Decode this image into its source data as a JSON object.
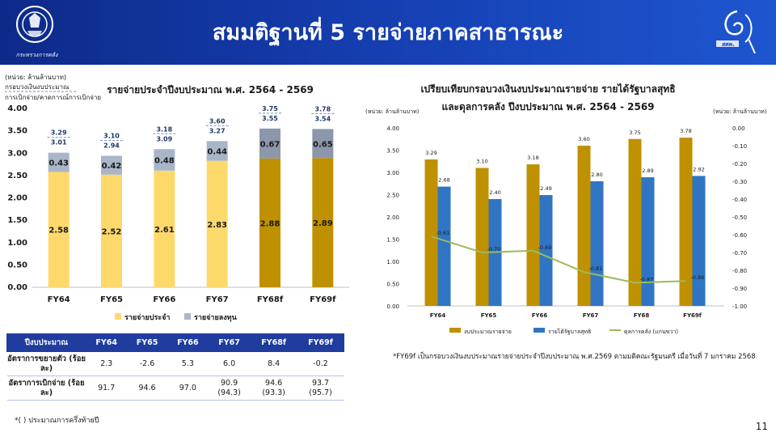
{
  "header": {
    "title": "สมมติฐานที่ 5  รายจ่ายภาคสาธารณะ",
    "org_left": "กระทรวงการคลัง",
    "org_right": "สศค."
  },
  "left_chart_unit": "(หน่วย: ล้านล้านบาท)",
  "left_chart_legend_note_1": "กรอบวงเงินงบประมาณ",
  "left_chart_legend_note_2": "การเบิกจ่าย/คาดการณ์การเบิกจ่าย",
  "right_chart_unit_left": "(หน่วย: ล้านล้านบาท)",
  "right_chart_unit_right": "(หน่วย: ล้านล้านบาท)",
  "chart_data": [
    {
      "type": "bar",
      "title": "รายจ่ายประจำปีงบประมาณ พ.ศ. 2564 - 2569",
      "categories": [
        "FY64",
        "FY65",
        "FY66",
        "FY67",
        "FY68f",
        "FY69f"
      ],
      "series": [
        {
          "name": "รายจ่ายประจำ",
          "values": [
            2.58,
            2.52,
            2.61,
            2.83,
            2.88,
            2.89
          ]
        },
        {
          "name": "รายจ่ายลงทุน",
          "values": [
            0.43,
            0.42,
            0.48,
            0.44,
            0.67,
            0.65
          ]
        }
      ],
      "budget_frame": [
        3.29,
        3.1,
        3.18,
        3.6,
        3.75,
        3.78
      ],
      "disbursement": [
        3.01,
        2.94,
        3.09,
        3.27,
        3.55,
        3.54
      ],
      "colors": {
        "recurrent": "#fdd96c",
        "recurrent_forecast": "#bf9000",
        "investment": "#a9b5c8",
        "investment_forecast": "#8c97ab"
      },
      "ylim": [
        0,
        4
      ],
      "yticks": [
        "0.00",
        "0.50",
        "1.00",
        "1.50",
        "2.00",
        "2.50",
        "3.00",
        "3.50",
        "4.00"
      ]
    },
    {
      "type": "bar",
      "title": "เปรียบเทียบกรอบวงเงินงบประมาณรายจ่าย รายได้รัฐบาลสุทธิ",
      "subtitle": "และดุลการคลัง ปีงบประมาณ พ.ศ. 2564 - 2569",
      "categories": [
        "FY64",
        "FY65",
        "FY66",
        "FY67",
        "FY68",
        "FY69f"
      ],
      "series": [
        {
          "name": "งบประมาณรายจ่าย",
          "values": [
            3.29,
            3.1,
            3.18,
            3.6,
            3.75,
            3.78
          ],
          "color": "#bf9000"
        },
        {
          "name": "รายได้รัฐบาลสุทธิ",
          "values": [
            2.68,
            2.4,
            2.49,
            2.8,
            2.89,
            2.92
          ],
          "color": "#2f75c4"
        },
        {
          "name": "ดุลการคลัง (แกนขวา)",
          "values": [
            -0.61,
            -0.7,
            -0.69,
            -0.81,
            -0.87,
            -0.86
          ],
          "color": "#9bbb59"
        }
      ],
      "ylim": [
        0,
        4
      ],
      "y2lim": [
        -1,
        0
      ],
      "yticks": [
        "0.00",
        "0.50",
        "1.00",
        "1.50",
        "2.00",
        "2.50",
        "3.00",
        "3.50",
        "4.00"
      ],
      "y2ticks": [
        "0.00",
        "-0.10",
        "-0.20",
        "-0.30",
        "-0.40",
        "-0.50",
        "-0.60",
        "-0.70",
        "-0.80",
        "-0.90",
        "-1.00"
      ]
    }
  ],
  "table": {
    "headers": [
      "ปีงบประมาณ",
      "FY64",
      "FY65",
      "FY66",
      "FY67",
      "FY68f",
      "FY69f"
    ],
    "rows": [
      {
        "label": "อัตราการขยายตัว (ร้อยละ)",
        "values": [
          "2.3",
          "-2.6",
          "5.3",
          "6.0",
          "8.4",
          "-0.2"
        ],
        "subs": [
          "",
          "",
          "",
          "",
          "",
          ""
        ]
      },
      {
        "label": "อัตราการเบิกจ่าย (ร้อยละ)",
        "values": [
          "91.7",
          "94.6",
          "97.0",
          "90.9",
          "94.6",
          "93.7"
        ],
        "subs": [
          "",
          "",
          "",
          "(94.3)",
          "(93.3)",
          "(95.7)"
        ]
      }
    ]
  },
  "note_right": "*FY69f เป็นกรอบวงเงินงบประมาณรายจ่ายประจำปีงบประมาณ พ.ศ.2569 ตามมติคณะรัฐมนตรี เมื่อวันที่ 7 มกราคม 2568",
  "footnote": "*( ) ประมาณการครึ่งท้ายปี",
  "page_number": "11"
}
